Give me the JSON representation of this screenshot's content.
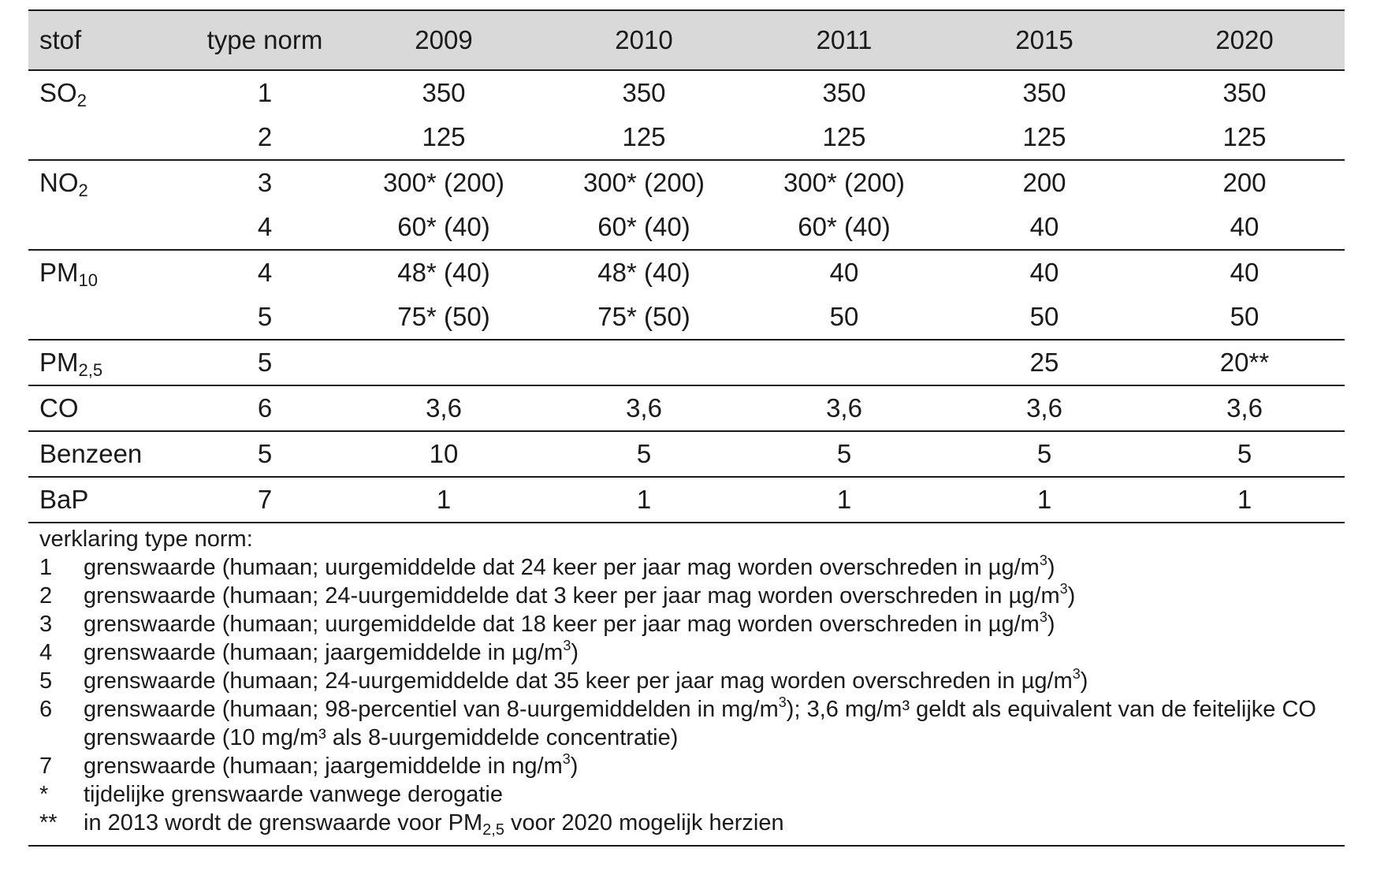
{
  "table": {
    "headers": [
      "stof",
      "type norm",
      "2009",
      "2010",
      "2011",
      "2015",
      "2020"
    ],
    "rows": [
      {
        "stof_main": "SO",
        "stof_sub": "2",
        "type": "1",
        "values": [
          "350",
          "350",
          "350",
          "350",
          "350"
        ]
      },
      {
        "stof_main": "",
        "stof_sub": "",
        "type": "2",
        "values": [
          "125",
          "125",
          "125",
          "125",
          "125"
        ]
      },
      {
        "stof_main": "NO",
        "stof_sub": "2",
        "type": "3",
        "values": [
          "300* (200)",
          "300* (200)",
          "300* (200)",
          "200",
          "200"
        ]
      },
      {
        "stof_main": "",
        "stof_sub": "",
        "type": "4",
        "values": [
          "60* (40)",
          "60* (40)",
          "60* (40)",
          "40",
          "40"
        ]
      },
      {
        "stof_main": "PM",
        "stof_sub": "10",
        "type": "4",
        "values": [
          "48* (40)",
          "48* (40)",
          "40",
          "40",
          "40"
        ]
      },
      {
        "stof_main": "",
        "stof_sub": "",
        "type": "5",
        "values": [
          "75* (50)",
          "75* (50)",
          "50",
          "50",
          "50"
        ]
      },
      {
        "stof_main": "PM",
        "stof_sub": "2,5",
        "type": "5",
        "values": [
          "",
          "",
          "",
          "25",
          "20**"
        ]
      },
      {
        "stof_main": "CO",
        "stof_sub": "",
        "type": "6",
        "values": [
          "3,6",
          "3,6",
          "3,6",
          "3,6",
          "3,6"
        ]
      },
      {
        "stof_main": "Benzeen",
        "stof_sub": "",
        "type": "5",
        "values": [
          "10",
          "5",
          "5",
          "5",
          "5"
        ]
      },
      {
        "stof_main": "BaP",
        "stof_sub": "",
        "type": "7",
        "values": [
          "1",
          "1",
          "1",
          "1",
          "1"
        ]
      }
    ]
  },
  "legend": {
    "title": "verklaring type norm:",
    "items": [
      {
        "key": "1",
        "text": "grenswaarde (humaan; uurgemiddelde dat 24 keer per jaar mag worden overschreden in µg/m",
        "sup": "3",
        "after": ")"
      },
      {
        "key": "2",
        "text": "grenswaarde (humaan; 24-uurgemiddelde dat 3 keer per jaar mag worden overschreden in µg/m",
        "sup": "3",
        "after": ")"
      },
      {
        "key": "3",
        "text": "grenswaarde (humaan; uurgemiddelde dat 18 keer per jaar mag worden overschreden in µg/m",
        "sup": "3",
        "after": ")"
      },
      {
        "key": "4",
        "text": "grenswaarde (humaan; jaargemiddelde in µg/m",
        "sup": "3",
        "after": ")"
      },
      {
        "key": "5",
        "text": "grenswaarde (humaan; 24-uurgemiddelde dat 35 keer per jaar mag worden overschreden in µg/m",
        "sup": "3",
        "after": ")"
      },
      {
        "key": "6",
        "text": "grenswaarde (humaan; 98-percentiel van 8-uurgemiddelden in mg/m",
        "sup": "3",
        "after": "); 3,6 mg/m³ geldt als equivalent van de feitelijke CO grenswaarde (10 mg/m³ als 8-uurgemiddelde concentratie)"
      },
      {
        "key": "7",
        "text": "grenswaarde (humaan; jaargemiddelde in ng/m",
        "sup": "3",
        "after": ")"
      },
      {
        "key": "*",
        "text": "tijdelijke grenswaarde vanwege derogatie",
        "sup": "",
        "after": ""
      },
      {
        "key": "**",
        "text": "in 2013 wordt de grenswaarde voor PM",
        "sub": "2,5",
        "after": " voor 2020 mogelijk herzien"
      }
    ]
  }
}
